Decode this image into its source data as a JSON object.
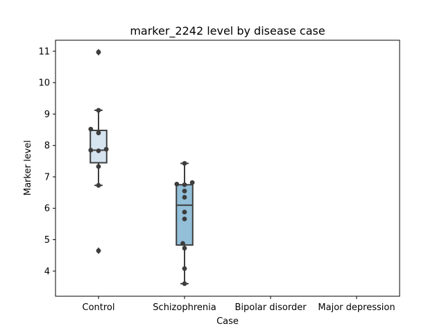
{
  "chart_data": {
    "type": "box",
    "title": "marker_2242 level by disease case",
    "xlabel": "Case",
    "ylabel": "Marker level",
    "ylim": [
      3.2,
      11.35
    ],
    "yticks": [
      4,
      5,
      6,
      7,
      8,
      9,
      10,
      11
    ],
    "categories": [
      "Control",
      "Schizophrenia",
      "Bipolar disorder",
      "Major depression"
    ],
    "boxes": [
      {
        "category": "Control",
        "q1": 7.45,
        "median": 7.85,
        "q3": 8.48,
        "whisker_low": 6.73,
        "whisker_high": 9.12,
        "outliers": [
          10.97,
          4.65
        ],
        "color": "#d6e4f0"
      },
      {
        "category": "Schizophrenia",
        "q1": 4.83,
        "median": 6.1,
        "q3": 6.75,
        "whisker_low": 3.6,
        "whisker_high": 7.43,
        "outliers": [],
        "color": "#93bfd9"
      },
      null,
      null
    ],
    "points": [
      {
        "category": "Control",
        "values": [
          10.97,
          9.12,
          8.52,
          8.4,
          7.88,
          7.85,
          7.83,
          7.33,
          6.73,
          4.65
        ],
        "offsets": [
          0,
          0,
          -0.09,
          0,
          0.09,
          -0.09,
          0,
          0,
          0,
          0
        ]
      },
      {
        "category": "Schizophrenia",
        "values": [
          7.43,
          6.82,
          6.77,
          6.75,
          6.55,
          6.35,
          5.88,
          5.66,
          4.88,
          4.73,
          4.08,
          3.6
        ],
        "offsets": [
          0,
          0.09,
          -0.09,
          0,
          0,
          0,
          0,
          0,
          -0.02,
          0,
          0,
          0
        ]
      }
    ]
  }
}
